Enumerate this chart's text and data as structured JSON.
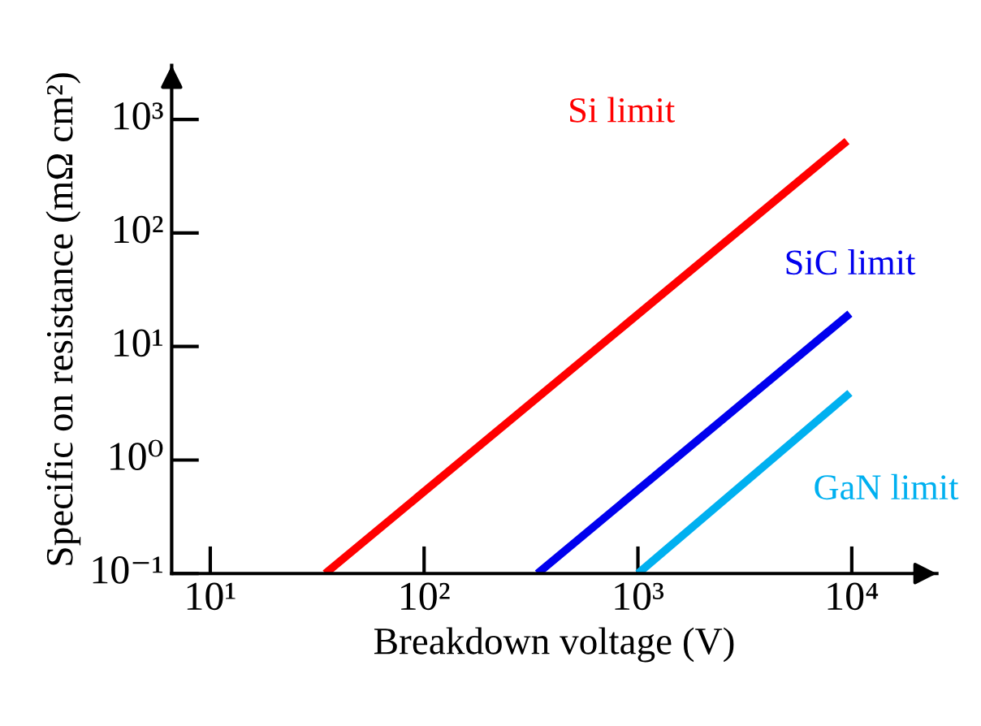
{
  "chart_data": {
    "type": "line",
    "xlabel": "Breakdown voltage (V)",
    "ylabel": "Specific on resistance (mΩ cm²)",
    "log": "xy",
    "xlim": [
      6.6,
      25000
    ],
    "ylim": [
      0.1,
      3000
    ],
    "xticks": [
      {
        "value": 10,
        "label": "10¹"
      },
      {
        "value": 100,
        "label": "10²"
      },
      {
        "value": 1000,
        "label": "10³"
      },
      {
        "value": 10000,
        "label": "10⁴"
      }
    ],
    "yticks": [
      {
        "value": 0.1,
        "label": "10⁻¹"
      },
      {
        "value": 1,
        "label": "10⁰"
      },
      {
        "value": 10,
        "label": "10¹"
      },
      {
        "value": 100,
        "label": "10²"
      },
      {
        "value": 1000,
        "label": "10³"
      }
    ],
    "grid": false,
    "legend": false,
    "marker": "none",
    "line_style": "solid",
    "series": [
      {
        "name": "Si limit",
        "color": "#ff0000",
        "x": [
          34.5,
          9500
        ],
        "values": [
          0.1,
          646
        ]
      },
      {
        "name": "SiC limit",
        "color": "#0000ee",
        "x": [
          339,
          9800
        ],
        "values": [
          0.1,
          19.5
        ]
      },
      {
        "name": "GaN limit",
        "color": "#00b0f0",
        "x": [
          1000,
          9800
        ],
        "values": [
          0.1,
          3.9
        ]
      }
    ]
  }
}
